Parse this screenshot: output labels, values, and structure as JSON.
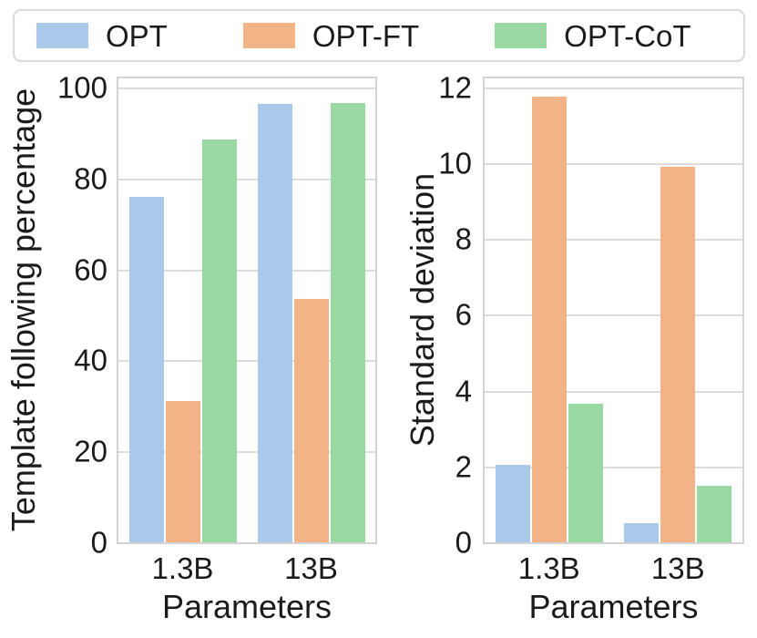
{
  "legend": {
    "items": [
      {
        "label": "OPT",
        "color": "#aac8ea"
      },
      {
        "label": "OPT-FT",
        "color": "#f2b486"
      },
      {
        "label": "OPT-CoT",
        "color": "#99d8a2"
      }
    ]
  },
  "colors": {
    "opt_blue": "#aac8ea",
    "opt_ft_orange": "#f2b486",
    "opt_cot_green": "#99d8a2",
    "gridline": "#dcdcdc",
    "spine": "#d2d2d2",
    "text": "#1b1b1b"
  },
  "chart_data": [
    {
      "type": "bar",
      "title": "",
      "categories": [
        "1.3B",
        "13B"
      ],
      "series": [
        {
          "name": "OPT",
          "values": [
            76,
            96.3
          ]
        },
        {
          "name": "OPT-FT",
          "values": [
            31,
            53.5
          ]
        },
        {
          "name": "OPT-CoT",
          "values": [
            88.5,
            96.5
          ]
        }
      ],
      "xlabel": "Parameters",
      "ylabel": "Template following percentage",
      "ylim": [
        0,
        100
      ],
      "yticks": [
        0,
        20,
        40,
        60,
        80,
        100
      ],
      "grid": true,
      "legend_position": "top"
    },
    {
      "type": "bar",
      "title": "",
      "categories": [
        "1.3B",
        "13B"
      ],
      "series": [
        {
          "name": "OPT",
          "values": [
            2.05,
            0.5
          ]
        },
        {
          "name": "OPT-FT",
          "values": [
            11.75,
            9.9
          ]
        },
        {
          "name": "OPT-CoT",
          "values": [
            3.65,
            1.5
          ]
        }
      ],
      "xlabel": "Parameters",
      "ylabel": "Standard deviation",
      "ylim": [
        0,
        12
      ],
      "yticks": [
        0,
        2,
        4,
        6,
        8,
        10,
        12
      ],
      "grid": true,
      "legend_position": "top"
    }
  ]
}
